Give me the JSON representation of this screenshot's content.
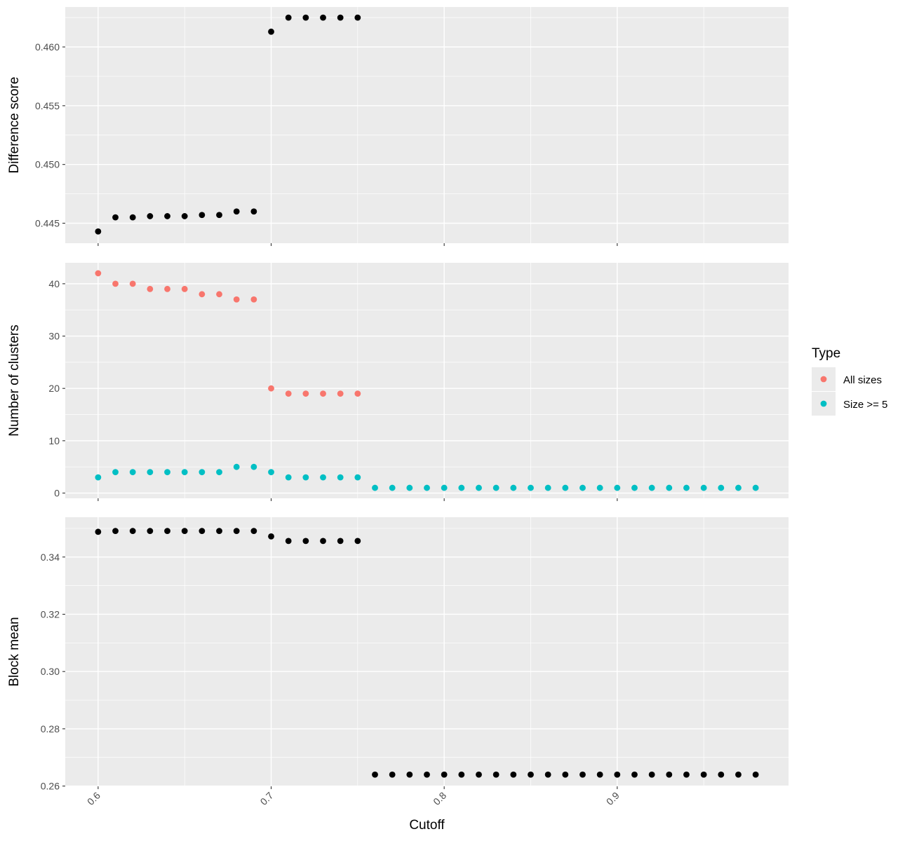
{
  "chart_data": {
    "type": "scatter",
    "xlabel": "Cutoff",
    "x_ticks": [
      "0.6",
      "0.7",
      "0.8",
      "0.9"
    ],
    "grid": true,
    "legend": {
      "title": "Type",
      "position": "right",
      "entries": [
        {
          "label": "All sizes",
          "color": "#F8766D"
        },
        {
          "label": "Size >= 5",
          "color": "#00BFC4"
        }
      ]
    },
    "colors": {
      "panel_bg": "#EBEBEB",
      "grid": "#FFFFFF",
      "default_point": "#000000"
    },
    "panels": [
      {
        "ylabel": "Difference score",
        "ylim": [
          0.4433,
          0.4634
        ],
        "y_ticks": [
          "0.445",
          "0.450",
          "0.455",
          "0.460"
        ],
        "series": [
          {
            "color": "#000000",
            "x": [
              0.6,
              0.61,
              0.62,
              0.63,
              0.64,
              0.65,
              0.66,
              0.67,
              0.68,
              0.69,
              0.7,
              0.71,
              0.72,
              0.73,
              0.74,
              0.75
            ],
            "y": [
              0.4443,
              0.4455,
              0.4455,
              0.4456,
              0.4456,
              0.4456,
              0.4457,
              0.4457,
              0.446,
              0.446,
              0.4613,
              0.4625,
              0.4625,
              0.4625,
              0.4625,
              0.4625
            ]
          }
        ]
      },
      {
        "ylabel": "Number of clusters",
        "ylim": [
          -1.0,
          44.0
        ],
        "y_ticks": [
          "0",
          "10",
          "20",
          "30",
          "40"
        ],
        "series": [
          {
            "name": "All sizes",
            "color": "#F8766D",
            "x": [
              0.6,
              0.61,
              0.62,
              0.63,
              0.64,
              0.65,
              0.66,
              0.67,
              0.68,
              0.69,
              0.7,
              0.71,
              0.72,
              0.73,
              0.74,
              0.75
            ],
            "y": [
              42,
              40,
              40,
              39,
              39,
              39,
              38,
              38,
              37,
              37,
              20,
              19,
              19,
              19,
              19,
              19
            ]
          },
          {
            "name": "Size >= 5",
            "color": "#00BFC4",
            "x": [
              0.6,
              0.61,
              0.62,
              0.63,
              0.64,
              0.65,
              0.66,
              0.67,
              0.68,
              0.69,
              0.7,
              0.71,
              0.72,
              0.73,
              0.74,
              0.75,
              0.76,
              0.77,
              0.78,
              0.79,
              0.8,
              0.81,
              0.82,
              0.83,
              0.84,
              0.85,
              0.86,
              0.87,
              0.88,
              0.89,
              0.9,
              0.91,
              0.92,
              0.93,
              0.94,
              0.95,
              0.96,
              0.97,
              0.98
            ],
            "y": [
              3,
              4,
              4,
              4,
              4,
              4,
              4,
              4,
              5,
              5,
              4,
              3,
              3,
              3,
              3,
              3,
              1,
              1,
              1,
              1,
              1,
              1,
              1,
              1,
              1,
              1,
              1,
              1,
              1,
              1,
              1,
              1,
              1,
              1,
              1,
              1,
              1,
              1,
              1
            ]
          }
        ]
      },
      {
        "ylabel": "Block mean",
        "ylim": [
          0.2599,
          0.3539
        ],
        "y_ticks": [
          "0.26",
          "0.28",
          "0.30",
          "0.32",
          "0.34"
        ],
        "series": [
          {
            "color": "#000000",
            "x": [
              0.6,
              0.61,
              0.62,
              0.63,
              0.64,
              0.65,
              0.66,
              0.67,
              0.68,
              0.69,
              0.7,
              0.71,
              0.72,
              0.73,
              0.74,
              0.75,
              0.76,
              0.77,
              0.78,
              0.79,
              0.8,
              0.81,
              0.82,
              0.83,
              0.84,
              0.85,
              0.86,
              0.87,
              0.88,
              0.89,
              0.9,
              0.91,
              0.92,
              0.93,
              0.94,
              0.95,
              0.96,
              0.97,
              0.98
            ],
            "y": [
              0.3488,
              0.3491,
              0.3491,
              0.3491,
              0.3491,
              0.3491,
              0.3491,
              0.3491,
              0.3491,
              0.3491,
              0.3472,
              0.3456,
              0.3456,
              0.3456,
              0.3456,
              0.3456,
              0.264,
              0.264,
              0.264,
              0.264,
              0.264,
              0.264,
              0.264,
              0.264,
              0.264,
              0.264,
              0.264,
              0.264,
              0.264,
              0.264,
              0.264,
              0.264,
              0.264,
              0.264,
              0.264,
              0.264,
              0.264,
              0.264,
              0.264
            ]
          }
        ]
      }
    ]
  }
}
